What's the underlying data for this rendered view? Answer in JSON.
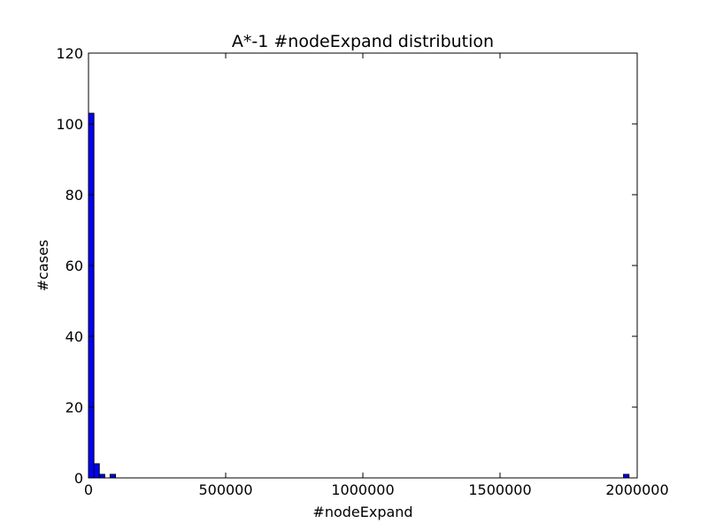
{
  "chart_data": {
    "type": "bar",
    "title": "A*-1 #nodeExpand distribution",
    "xlabel": "#nodeExpand",
    "ylabel": "#cases",
    "xlim": [
      0,
      2000000
    ],
    "ylim": [
      0,
      120
    ],
    "xticks": [
      0,
      500000,
      1000000,
      1500000,
      2000000
    ],
    "xtick_labels": [
      "0",
      "500000",
      "1000000",
      "1500000",
      "2000000"
    ],
    "yticks": [
      0,
      20,
      40,
      60,
      80,
      100,
      120
    ],
    "ytick_labels": [
      "0",
      "20",
      "40",
      "60",
      "80",
      "100",
      "120"
    ],
    "bin_width": 19700,
    "bins": [
      {
        "x0": 0,
        "count": 103
      },
      {
        "x0": 19700,
        "count": 4
      },
      {
        "x0": 39400,
        "count": 1
      },
      {
        "x0": 78800,
        "count": 1
      },
      {
        "x0": 1950300,
        "count": 1
      }
    ],
    "bar_color": "#0000ff",
    "edge_color": "#000000",
    "grid": false
  }
}
